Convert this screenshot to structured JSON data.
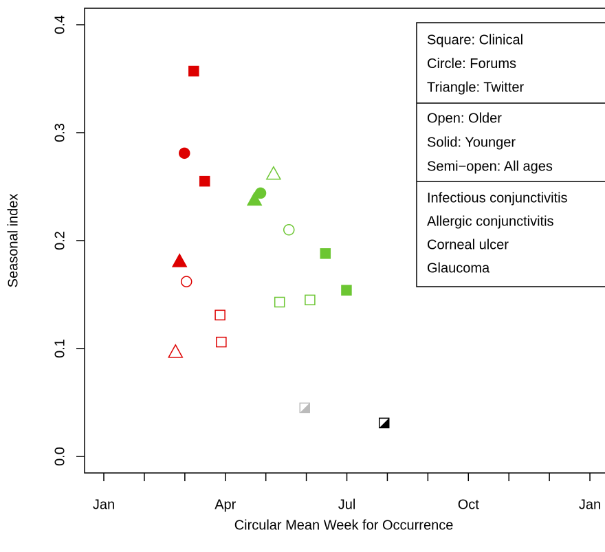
{
  "chart_data": {
    "type": "scatter",
    "xlabel": "Circular Mean Week for Occurrence",
    "ylabel": "Seasonal index",
    "xlim": [
      -0.47,
      12.47
    ],
    "xticks": [
      {
        "value": 0,
        "label": "Jan"
      },
      {
        "value": 3,
        "label": "Apr"
      },
      {
        "value": 6,
        "label": "Jul"
      },
      {
        "value": 9,
        "label": "Oct"
      },
      {
        "value": 12,
        "label": "Jan"
      }
    ],
    "xminor_ticks": [
      1,
      2,
      4,
      5,
      7,
      8,
      10,
      11
    ],
    "ylim": [
      -0.015,
      0.415
    ],
    "yticks": [
      {
        "value": 0,
        "label": "0.0"
      },
      0.1,
      0.2,
      0.3,
      0.4
    ],
    "legend_shapes": [
      "Square: Clinical",
      "Circle: Forums",
      "Triangle: Twitter"
    ],
    "legend_fills": [
      "Open: Older",
      "Solid: Younger",
      "Semi−open: All ages"
    ],
    "legend": "upper right",
    "series": [
      {
        "name": "Infectious conjunctivitis",
        "color": "#dd0000",
        "x": [
          2.22,
          2.49,
          1.99,
          1.87,
          2.04,
          2.87,
          2.9,
          1.77
        ],
        "values": [
          0.357,
          0.255,
          0.281,
          0.181,
          0.162,
          0.131,
          0.106,
          0.097
        ],
        "shapes": [
          "square",
          "square",
          "circle",
          "triangle",
          "circle",
          "square",
          "square",
          "triangle"
        ],
        "fills": [
          "solid",
          "solid",
          "solid",
          "solid",
          "open",
          "open",
          "open",
          "open"
        ]
      },
      {
        "name": "Allergic conjunctivitis",
        "color": "#6cc632",
        "x": [
          4.19,
          3.87,
          3.72,
          4.57,
          5.47,
          5.99,
          4.34,
          5.09
        ],
        "values": [
          0.262,
          0.244,
          0.238,
          0.21,
          0.188,
          0.154,
          0.143,
          0.145
        ],
        "shapes": [
          "triangle",
          "circle",
          "triangle",
          "circle",
          "square",
          "square",
          "square",
          "square"
        ],
        "fills": [
          "open",
          "solid",
          "solid",
          "open",
          "solid",
          "solid",
          "open",
          "open"
        ]
      },
      {
        "name": "Corneal ulcer",
        "color": "#bbbbbb",
        "x": [
          4.96
        ],
        "values": [
          0.045
        ],
        "shapes": [
          "square"
        ],
        "fills": [
          "semi"
        ]
      },
      {
        "name": "Glaucoma",
        "color": "#000000",
        "x": [
          6.92
        ],
        "values": [
          0.031
        ],
        "shapes": [
          "square"
        ],
        "fills": [
          "semi"
        ]
      }
    ]
  }
}
